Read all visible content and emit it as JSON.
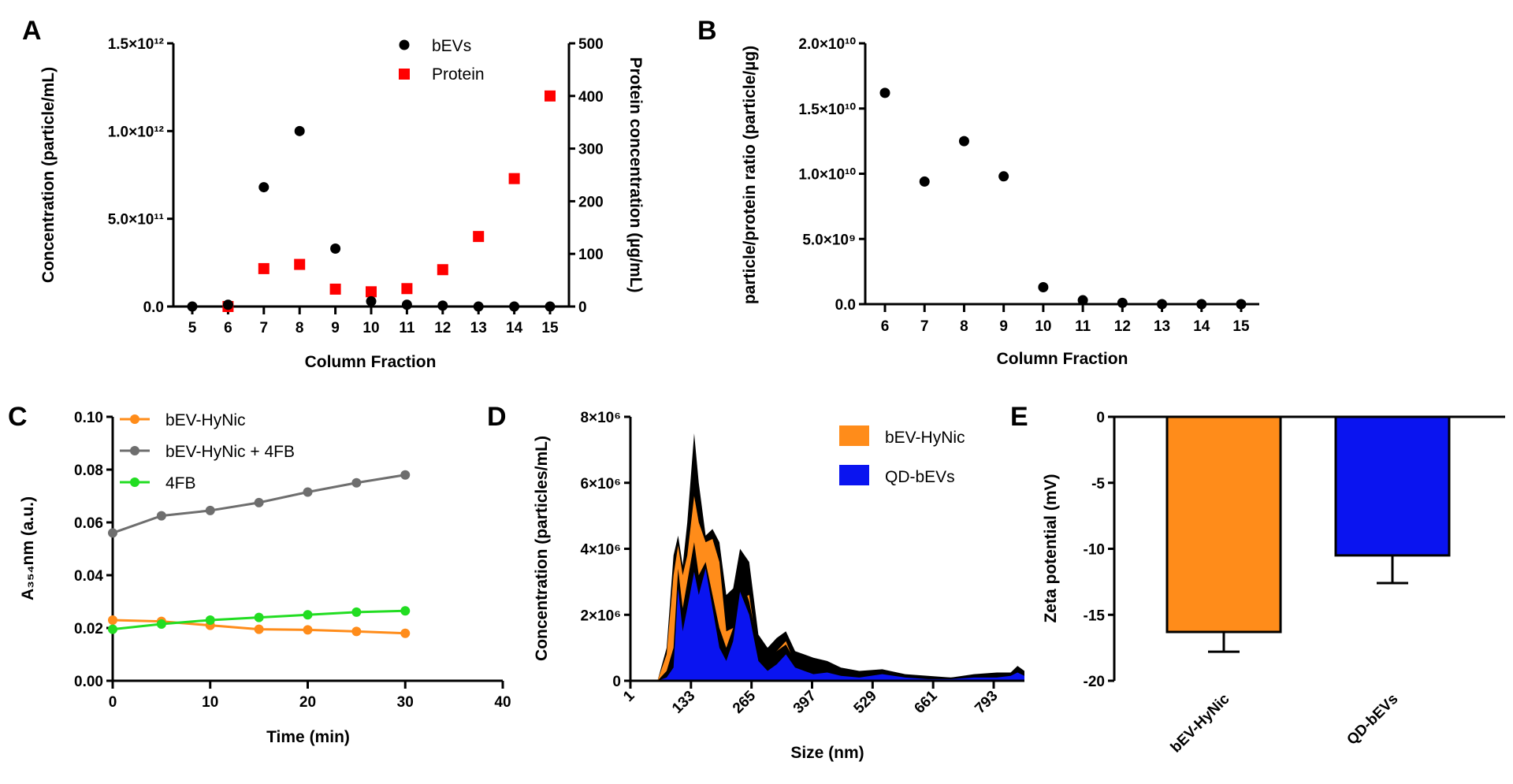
{
  "chart_data": [
    {
      "panel": "A",
      "type": "scatter",
      "xlabel": "Column Fraction",
      "ylabel": "Concentration (particle/mL)",
      "y2label": "Protein concentration (µg/mL)",
      "xticks": [
        5,
        6,
        7,
        8,
        9,
        10,
        11,
        12,
        13,
        14,
        15
      ],
      "ylim": [
        0,
        1500000000000.0
      ],
      "yticks": [
        "0.0",
        "5.0×10¹¹",
        "1.0×10¹²",
        "1.5×10¹²"
      ],
      "ytick_values": [
        0,
        500000000000.0,
        1000000000000.0,
        1500000000000.0
      ],
      "y2lim": [
        0,
        500
      ],
      "y2ticks": [
        0,
        100,
        200,
        300,
        400,
        500
      ],
      "legend": "top-right",
      "series": [
        {
          "name": "bEVs",
          "axis": "left",
          "color": "#000000",
          "marker": "circle",
          "x": [
            5,
            6,
            7,
            8,
            9,
            10,
            11,
            12,
            13,
            14,
            15
          ],
          "y": [
            0,
            10000000000.0,
            680000000000.0,
            1000000000000.0,
            330000000000.0,
            30000000000.0,
            10000000000.0,
            5000000000.0,
            0,
            0,
            0
          ]
        },
        {
          "name": "Protein",
          "axis": "right",
          "color": "#ff0000",
          "marker": "square",
          "x": [
            6,
            7,
            8,
            9,
            10,
            11,
            12,
            13,
            14,
            15
          ],
          "y": [
            0,
            72,
            80,
            33,
            28,
            34,
            70,
            133,
            243,
            400
          ]
        }
      ]
    },
    {
      "panel": "B",
      "type": "scatter",
      "xlabel": "Column Fraction",
      "ylabel": "particle/protein ratio (particle/µg)",
      "xticks": [
        6,
        7,
        8,
        9,
        10,
        11,
        12,
        13,
        14,
        15
      ],
      "ylim": [
        0,
        20000000000.0
      ],
      "yticks": [
        "0.0",
        "5.0×10⁹",
        "1.0×10¹⁰",
        "1.5×10¹⁰",
        "2.0×10¹⁰"
      ],
      "ytick_values": [
        0,
        5000000000.0,
        10000000000.0,
        15000000000.0,
        20000000000.0
      ],
      "series": [
        {
          "name": "ratio",
          "color": "#000000",
          "marker": "circle",
          "x": [
            6,
            7,
            8,
            9,
            10,
            11,
            12,
            13,
            14,
            15
          ],
          "y": [
            16200000000.0,
            9400000000.0,
            12500000000.0,
            9800000000.0,
            1300000000.0,
            300000000.0,
            100000000.0,
            0,
            0,
            0
          ]
        }
      ]
    },
    {
      "panel": "C",
      "type": "line",
      "xlabel": "Time (min)",
      "ylabel": "A₃₅₄nm (a.u.)",
      "xlim": [
        0,
        40
      ],
      "xticks": [
        0,
        10,
        20,
        30,
        40
      ],
      "ylim": [
        0,
        0.1
      ],
      "yticks": [
        "0.00",
        "0.02",
        "0.04",
        "0.06",
        "0.08",
        "0.10"
      ],
      "ytick_values": [
        0,
        0.02,
        0.04,
        0.06,
        0.08,
        0.1
      ],
      "legend": "top-left",
      "series": [
        {
          "name": "bEV-HyNic",
          "color": "#ff8c1a",
          "x": [
            0,
            5,
            10,
            15,
            20,
            25,
            30
          ],
          "y": [
            0.023,
            0.0225,
            0.021,
            0.0195,
            0.0193,
            0.0187,
            0.018
          ]
        },
        {
          "name": "bEV-HyNic + 4FB",
          "color": "#6e6e6e",
          "x": [
            0,
            5,
            10,
            15,
            20,
            25,
            30
          ],
          "y": [
            0.056,
            0.0625,
            0.0645,
            0.0675,
            0.0715,
            0.075,
            0.078
          ]
        },
        {
          "name": "4FB",
          "color": "#22dd22",
          "x": [
            0,
            5,
            10,
            15,
            20,
            25,
            30
          ],
          "y": [
            0.0195,
            0.0215,
            0.023,
            0.024,
            0.025,
            0.026,
            0.0265
          ]
        }
      ]
    },
    {
      "panel": "D",
      "type": "area",
      "xlabel": "Size (nm)",
      "ylabel": "Concentration (particles/mL)",
      "xlim": [
        1,
        860
      ],
      "xticks": [
        1,
        133,
        265,
        397,
        529,
        661,
        793
      ],
      "ylim": [
        0,
        8000000.0
      ],
      "yticks": [
        "0",
        "2×10⁶",
        "4×10⁶",
        "6×10⁶",
        "8×10⁶"
      ],
      "ytick_values": [
        0,
        2000000.0,
        4000000.0,
        6000000.0,
        8000000.0
      ],
      "legend": "top-right",
      "x": [
        60,
        80,
        95,
        105,
        115,
        125,
        140,
        150,
        165,
        180,
        195,
        210,
        225,
        240,
        260,
        280,
        300,
        320,
        340,
        360,
        380,
        400,
        430,
        460,
        500,
        550,
        600,
        650,
        700,
        750,
        800,
        830,
        845,
        860
      ],
      "series": [
        {
          "name": "bEV-HyNic",
          "color": "#ff8c1a",
          "mean": [
            0,
            800000.0,
            3200000.0,
            4100000.0,
            3200000.0,
            3800000.0,
            5600000.0,
            4800000.0,
            4200000.0,
            4300000.0,
            3600000.0,
            1500000.0,
            1600000.0,
            2500000.0,
            2600000.0,
            700000.0,
            500000.0,
            900000.0,
            1200000.0,
            500000.0,
            400000.0,
            300000.0,
            350000.0,
            200000.0,
            100000.0,
            200000.0,
            100000.0,
            50000.0,
            50000.0,
            100000.0,
            150000.0,
            150000.0,
            300000.0,
            200000.0
          ],
          "upper": [
            0,
            1000000.0,
            3800000.0,
            4400000.0,
            3500000.0,
            4800000.0,
            7500000.0,
            6000000.0,
            4400000.0,
            4600000.0,
            4200000.0,
            2600000.0,
            2800000.0,
            4000000.0,
            3600000.0,
            1400000.0,
            1000000.0,
            1300000.0,
            1500000.0,
            900000.0,
            800000.0,
            700000.0,
            600000.0,
            400000.0,
            300000.0,
            350000.0,
            200000.0,
            150000.0,
            100000.0,
            200000.0,
            250000.0,
            250000.0,
            450000.0,
            300000.0
          ]
        },
        {
          "name": "QD-bEVs",
          "color": "#0a14f0",
          "mean": [
            0,
            100000.0,
            400000.0,
            2800000.0,
            1500000.0,
            2200000.0,
            3300000.0,
            2600000.0,
            3400000.0,
            2200000.0,
            1000000.0,
            600000.0,
            1200000.0,
            2700000.0,
            2000000.0,
            600000.0,
            300000.0,
            500000.0,
            800000.0,
            400000.0,
            300000.0,
            200000.0,
            250000.0,
            150000.0,
            100000.0,
            200000.0,
            100000.0,
            50000.0,
            50000.0,
            100000.0,
            100000.0,
            150000.0,
            250000.0,
            150000.0
          ],
          "upper": [
            0,
            300000.0,
            1000000.0,
            3400000.0,
            2200000.0,
            3000000.0,
            4200000.0,
            3200000.0,
            3600000.0,
            2600000.0,
            1600000.0,
            1000000.0,
            1600000.0,
            3200000.0,
            2400000.0,
            1000000.0,
            600000.0,
            900000.0,
            1100000.0,
            600000.0,
            500000.0,
            400000.0,
            400000.0,
            300000.0,
            200000.0,
            300000.0,
            150000.0,
            100000.0,
            100000.0,
            150000.0,
            200000.0,
            200000.0,
            350000.0,
            250000.0
          ]
        }
      ]
    },
    {
      "panel": "E",
      "type": "bar",
      "ylabel": "Zeta potential (mV)",
      "categories": [
        "bEV-HyNic",
        "QD-bEVs"
      ],
      "values": [
        -16.3,
        -10.5
      ],
      "errors": [
        1.5,
        2.1
      ],
      "colors": [
        "#ff8c1a",
        "#0a14f0"
      ],
      "ylim": [
        -20,
        0
      ],
      "yticks": [
        "-20",
        "-15",
        "-10",
        "-5",
        "0"
      ],
      "ytick_values": [
        -20,
        -15,
        -10,
        -5,
        0
      ]
    }
  ]
}
